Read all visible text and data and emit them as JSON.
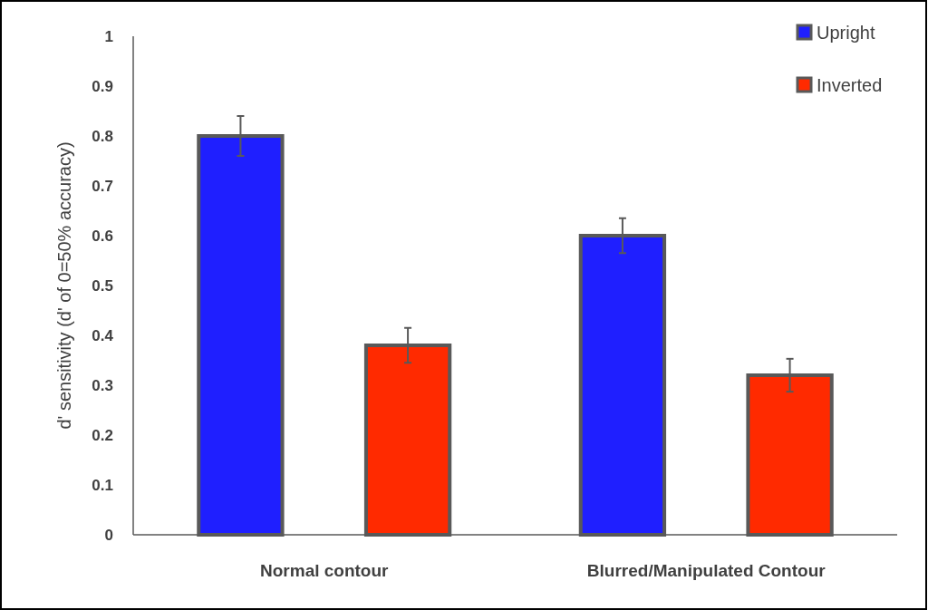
{
  "chart_data": {
    "type": "bar",
    "ylabel": "d' sensitivity (d' of 0=50% accuracy)",
    "categories": [
      "Normal contour",
      "Blurred/Manipulated Contour"
    ],
    "series": [
      {
        "name": "Upright",
        "color": "#1f1fff",
        "values": [
          0.8,
          0.6
        ],
        "errors": [
          0.04,
          0.035
        ]
      },
      {
        "name": "Inverted",
        "color": "#ff2a00",
        "values": [
          0.38,
          0.32
        ],
        "errors": [
          0.035,
          0.033
        ]
      }
    ],
    "ylim": [
      0,
      1
    ],
    "yticks": [
      0,
      0.1,
      0.2,
      0.3,
      0.4,
      0.5,
      0.6,
      0.7,
      0.8,
      0.9,
      1
    ],
    "grid": false,
    "legend": "top right"
  }
}
